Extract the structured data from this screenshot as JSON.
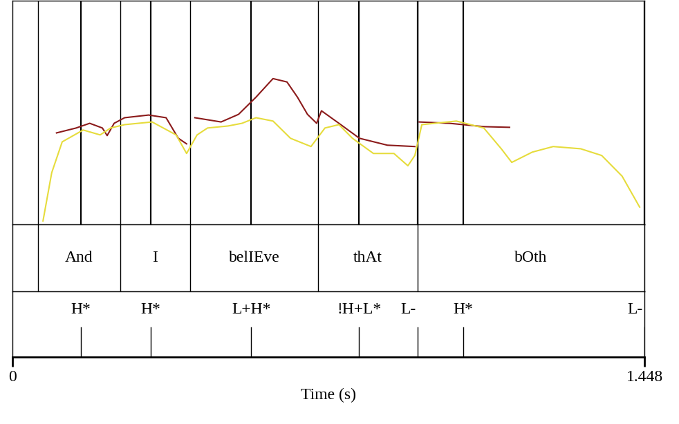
{
  "chart_data": {
    "type": "spectrogram",
    "x_label": "Time (s)",
    "xlim": [
      0,
      1.448
    ],
    "xticks": [
      0,
      1.448
    ],
    "ylim": [
      0,
      100
    ],
    "tick_labels": "x",
    "series": [
      {
        "color": "#8b1a1a",
        "x": [
          0.101,
          0.146,
          0.177,
          0.206,
          0.217,
          0.233,
          0.257,
          0.312,
          0.352,
          0.38,
          0.399,
          0.408,
          0.418,
          0.478,
          0.518,
          0.558,
          0.597,
          0.629,
          0.653,
          0.676,
          0.697,
          0.708,
          0.748,
          0.795,
          0.859,
          0.922,
          0.927,
          0.932,
          1.001,
          1.08,
          1.139
        ],
        "values": [
          40.9,
          43.1,
          45.2,
          43.1,
          39.7,
          45.2,
          47.7,
          48.9,
          47.7,
          38.5,
          36.0,
          null,
          47.7,
          45.8,
          49.2,
          56.9,
          65.2,
          63.7,
          56.9,
          49.2,
          45.2,
          50.8,
          45.2,
          38.5,
          35.4,
          34.8,
          null,
          45.8,
          45.2,
          43.7,
          43.4
        ]
      },
      {
        "color": "#e6dc3c",
        "x": [
          0.07,
          0.09,
          0.114,
          0.162,
          0.201,
          0.225,
          0.257,
          0.32,
          0.375,
          0.399,
          0.423,
          0.447,
          0.494,
          0.526,
          0.558,
          0.597,
          0.637,
          0.684,
          0.716,
          0.748,
          0.779,
          0.827,
          0.874,
          0.906,
          0.922,
          0.938,
          1.017,
          1.08,
          1.12,
          1.144,
          1.191,
          1.239,
          1.302,
          1.35,
          1.397,
          1.437
        ],
        "values": [
          1.5,
          23.1,
          36.9,
          42.2,
          40.0,
          43.1,
          44.6,
          45.8,
          40.0,
          31.7,
          40.0,
          43.1,
          44.0,
          45.2,
          47.7,
          46.2,
          38.5,
          34.8,
          43.1,
          44.6,
          38.5,
          31.7,
          31.7,
          26.2,
          30.8,
          44.6,
          46.2,
          43.1,
          33.8,
          27.7,
          32.3,
          34.8,
          33.8,
          30.8,
          21.5,
          7.7
        ]
      }
    ],
    "words": {
      "boundaries": [
        0.059,
        0.247,
        0.407,
        0.7,
        0.928,
        1.448
      ],
      "labels": [
        "And",
        "I",
        "belIEve",
        "thAt",
        "bOth"
      ]
    },
    "tones": {
      "times": [
        0.157,
        0.317,
        0.547,
        0.794,
        0.928,
        1.033,
        1.448
      ],
      "labels": [
        "H*",
        "H*",
        "L+H*",
        "!H+L*",
        "L-",
        "H*",
        "L-"
      ]
    }
  }
}
